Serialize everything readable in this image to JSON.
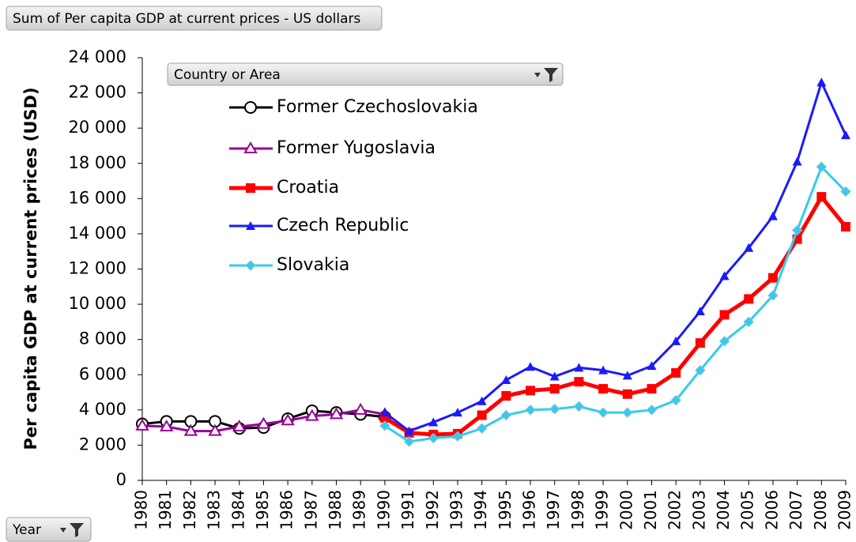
{
  "chart_data": {
    "type": "line",
    "title": "Sum of Per capita GDP at current prices - US dollars",
    "y_label": "Per capita  GDP at  current prices (USD)",
    "legend_title": "Country or Area",
    "x_field": "Year",
    "categories": [
      "1980",
      "1981",
      "1982",
      "1983",
      "1984",
      "1985",
      "1986",
      "1987",
      "1988",
      "1989",
      "1990",
      "1991",
      "1992",
      "1993",
      "1994",
      "1995",
      "1996",
      "1997",
      "1998",
      "1999",
      "2000",
      "2001",
      "2002",
      "2003",
      "2004",
      "2005",
      "2006",
      "2007",
      "2008",
      "2009"
    ],
    "ylim": [
      0,
      24000
    ],
    "yticks": [
      0,
      {
        "value": 2000,
        "label": "2 000"
      },
      {
        "value": 4000,
        "label": "4 000"
      },
      {
        "value": 6000,
        "label": "6 000"
      },
      {
        "value": 8000,
        "label": "8 000"
      },
      {
        "value": 10000,
        "label": "10 000"
      },
      {
        "value": 12000,
        "label": "12 000"
      },
      {
        "value": 14000,
        "label": "14 000"
      },
      {
        "value": 16000,
        "label": "16 000"
      },
      {
        "value": 18000,
        "label": "18 000"
      },
      {
        "value": 20000,
        "label": "20 000"
      },
      {
        "value": 22000,
        "label": "22 000"
      },
      {
        "value": 24000,
        "label": "24 000"
      }
    ],
    "series": [
      {
        "name": "Former Czechoslovakia",
        "color": "#000000",
        "marker": "circle-open",
        "values": [
          3200,
          3350,
          3350,
          3350,
          2950,
          3000,
          3500,
          3950,
          3850,
          3750,
          3600,
          null,
          null,
          null,
          null,
          null,
          null,
          null,
          null,
          null,
          null,
          null,
          null,
          null,
          null,
          null,
          null,
          null,
          null,
          null
        ]
      },
      {
        "name": "Former Yugoslavia",
        "color": "#990099",
        "marker": "triangle-open",
        "values": [
          3100,
          3050,
          2800,
          2800,
          3050,
          3200,
          3400,
          3650,
          3750,
          4000,
          3750,
          null,
          null,
          null,
          null,
          null,
          null,
          null,
          null,
          null,
          null,
          null,
          null,
          null,
          null,
          null,
          null,
          null,
          null,
          null
        ]
      },
      {
        "name": "Croatia",
        "color": "#ff0000",
        "marker": "square",
        "values": [
          null,
          null,
          null,
          null,
          null,
          null,
          null,
          null,
          null,
          null,
          3550,
          2700,
          2600,
          2650,
          3700,
          4800,
          5100,
          5200,
          5600,
          5200,
          4900,
          5200,
          6100,
          7800,
          9400,
          10300,
          11500,
          13700,
          16100,
          14400
        ]
      },
      {
        "name": "Czech Republic",
        "color": "#1a1aff",
        "marker": "triangle",
        "values": [
          null,
          null,
          null,
          null,
          null,
          null,
          null,
          null,
          null,
          null,
          3850,
          2800,
          3300,
          3850,
          4500,
          5700,
          6450,
          5900,
          6400,
          6250,
          5950,
          6500,
          7900,
          9600,
          11600,
          13200,
          15000,
          18100,
          22600,
          19600
        ]
      },
      {
        "name": "Slovakia",
        "color": "#33ccee",
        "marker": "diamond",
        "values": [
          null,
          null,
          null,
          null,
          null,
          null,
          null,
          null,
          null,
          null,
          3100,
          2200,
          2400,
          2500,
          2950,
          3700,
          4000,
          4050,
          4200,
          3850,
          3850,
          4000,
          4550,
          6250,
          7900,
          9000,
          10500,
          14200,
          17800,
          16400
        ]
      }
    ]
  }
}
